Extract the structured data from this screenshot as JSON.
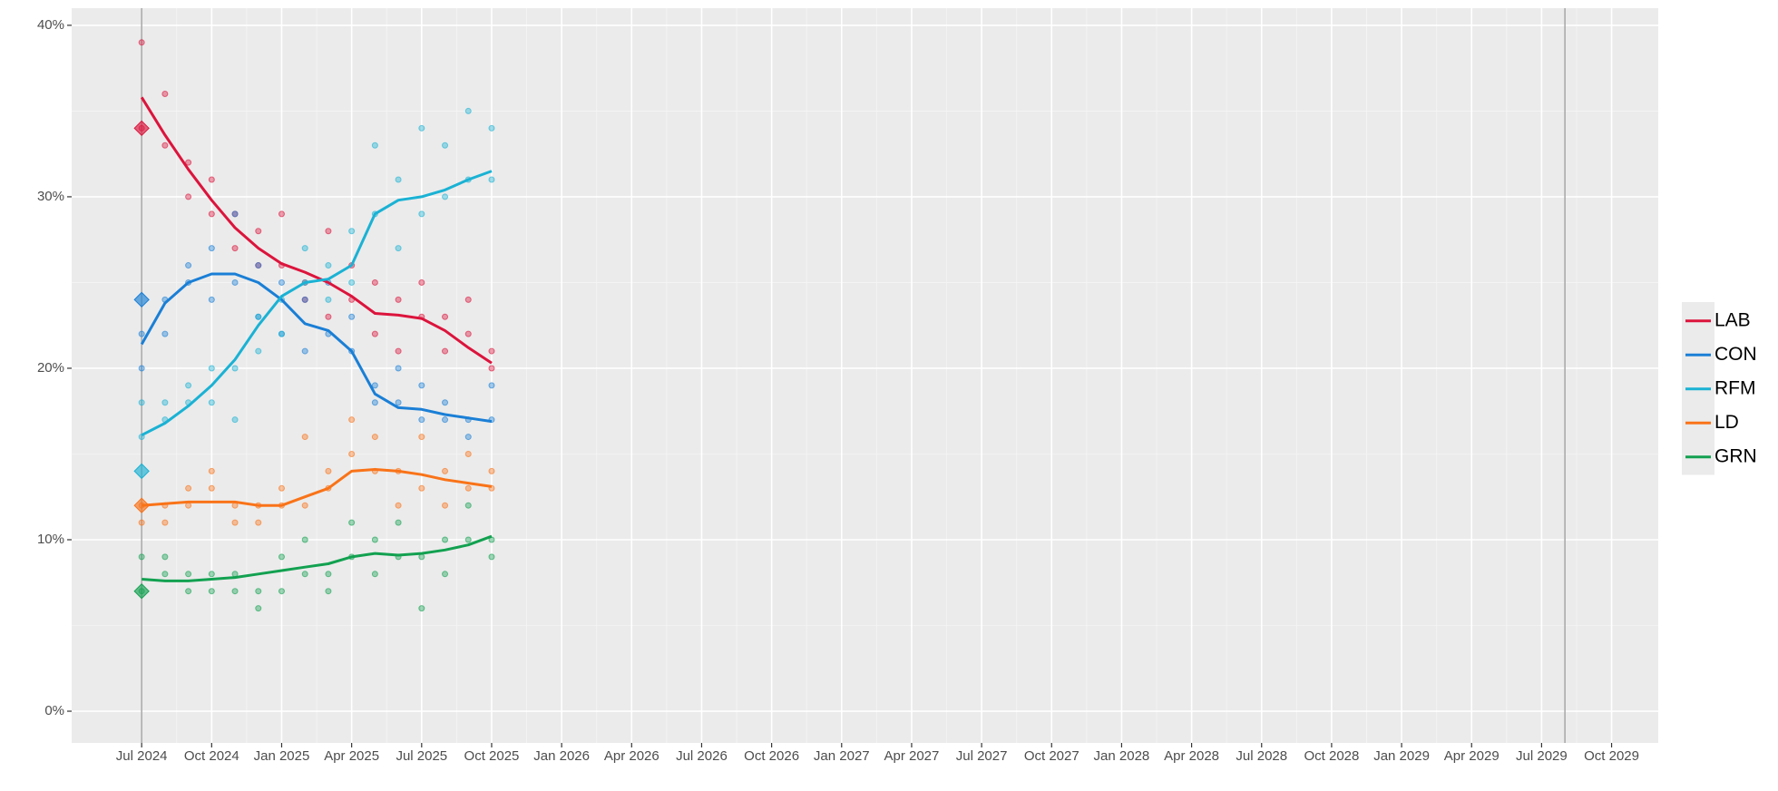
{
  "chart_data": {
    "type": "line",
    "x": [
      "2024-07",
      "2024-08",
      "2024-09",
      "2024-10",
      "2024-11",
      "2024-12",
      "2025-01",
      "2025-02",
      "2025-03",
      "2025-04",
      "2025-05",
      "2025-06",
      "2025-07",
      "2025-08",
      "2025-09",
      "2025-10"
    ],
    "poll_x": [
      "2024-07",
      "2024-07",
      "2024-08",
      "2024-08",
      "2024-09",
      "2024-09",
      "2024-10",
      "2024-10",
      "2024-11",
      "2024-11",
      "2024-12",
      "2024-12",
      "2025-01",
      "2025-01",
      "2025-02",
      "2025-02",
      "2025-03",
      "2025-03",
      "2025-04",
      "2025-04",
      "2025-05",
      "2025-05",
      "2025-06",
      "2025-06",
      "2025-07",
      "2025-07",
      "2025-08",
      "2025-08",
      "2025-09",
      "2025-09",
      "2025-10",
      "2025-10"
    ],
    "election_x": "2024-07",
    "vlines": [
      "2024-07",
      "2029-08"
    ],
    "series": [
      {
        "name": "LAB",
        "color": "#dc143c",
        "values": [
          35.8,
          33.6,
          31.6,
          29.8,
          28.2,
          27,
          26.1,
          25.6,
          25,
          24.2,
          23.2,
          23.1,
          22.9,
          22.2,
          21.2,
          20.3
        ],
        "polls": [
          39,
          34,
          36,
          33,
          30,
          32,
          29,
          31,
          29,
          27,
          28,
          26,
          26,
          29,
          25,
          24,
          28,
          23,
          24,
          26,
          22,
          25,
          24,
          21,
          23,
          25,
          21,
          23,
          22,
          24,
          21,
          20
        ],
        "election": 34
      },
      {
        "name": "CON",
        "color": "#1a7fd6",
        "values": [
          21.4,
          23.8,
          25,
          25.5,
          25.5,
          25,
          24,
          22.6,
          22.2,
          21,
          18.5,
          17.7,
          17.6,
          17.3,
          17.1,
          16.9
        ],
        "polls": [
          20,
          22,
          24,
          22,
          25,
          26,
          24,
          27,
          25,
          29,
          26,
          23,
          25,
          22,
          24,
          21,
          22,
          25,
          21,
          23,
          19,
          18,
          18,
          20,
          17,
          19,
          17,
          18,
          17,
          16,
          17,
          19
        ],
        "election": 24
      },
      {
        "name": "RFM",
        "color": "#1ab2d4",
        "values": [
          16.1,
          16.8,
          17.8,
          19,
          20.5,
          22.5,
          24.2,
          25,
          25.2,
          26,
          29,
          29.8,
          30,
          30.4,
          31,
          31.5
        ],
        "polls": [
          16,
          18,
          17,
          18,
          19,
          18,
          20,
          18,
          20,
          17,
          23,
          21,
          24,
          22,
          25,
          27,
          26,
          24,
          28,
          25,
          29,
          33,
          31,
          27,
          29,
          34,
          30,
          33,
          31,
          35,
          31,
          34
        ],
        "election": 14
      },
      {
        "name": "LD",
        "color": "#f97318",
        "values": [
          12,
          12.1,
          12.2,
          12.2,
          12.2,
          12,
          12,
          12.5,
          13,
          14,
          14.1,
          14,
          13.8,
          13.5,
          13.3,
          13.1
        ],
        "polls": [
          12,
          11,
          12,
          11,
          13,
          12,
          13,
          14,
          12,
          11,
          12,
          11,
          13,
          12,
          12,
          16,
          13,
          14,
          15,
          17,
          14,
          16,
          14,
          12,
          13,
          16,
          14,
          12,
          13,
          15,
          13,
          14
        ],
        "election": 12
      },
      {
        "name": "GRN",
        "color": "#12a150",
        "values": [
          7.7,
          7.6,
          7.6,
          7.7,
          7.8,
          8,
          8.2,
          8.4,
          8.6,
          9,
          9.2,
          9.1,
          9.2,
          9.4,
          9.7,
          10.2
        ],
        "polls": [
          9,
          7,
          8,
          9,
          8,
          7,
          7,
          8,
          8,
          7,
          7,
          6,
          9,
          7,
          8,
          10,
          8,
          7,
          9,
          11,
          10,
          8,
          9,
          11,
          9,
          6,
          10,
          8,
          10,
          12,
          10,
          9
        ],
        "election": 7
      }
    ],
    "xlim": [
      "2024-04",
      "2029-12"
    ],
    "xticks": [
      {
        "value": "2024-07",
        "label": "Jul 2024"
      },
      {
        "value": "2024-10",
        "label": "Oct 2024"
      },
      {
        "value": "2025-01",
        "label": "Jan 2025"
      },
      {
        "value": "2025-04",
        "label": "Apr 2025"
      },
      {
        "value": "2025-07",
        "label": "Jul 2025"
      },
      {
        "value": "2025-10",
        "label": "Oct 2025"
      },
      {
        "value": "2026-01",
        "label": "Jan 2026"
      },
      {
        "value": "2026-04",
        "label": "Apr 2026"
      },
      {
        "value": "2026-07",
        "label": "Jul 2026"
      },
      {
        "value": "2026-10",
        "label": "Oct 2026"
      },
      {
        "value": "2027-01",
        "label": "Jan 2027"
      },
      {
        "value": "2027-04",
        "label": "Apr 2027"
      },
      {
        "value": "2027-07",
        "label": "Jul 2027"
      },
      {
        "value": "2027-10",
        "label": "Oct 2027"
      },
      {
        "value": "2028-01",
        "label": "Jan 2028"
      },
      {
        "value": "2028-04",
        "label": "Apr 2028"
      },
      {
        "value": "2028-07",
        "label": "Jul 2028"
      },
      {
        "value": "2028-10",
        "label": "Oct 2028"
      },
      {
        "value": "2029-01",
        "label": "Jan 2029"
      },
      {
        "value": "2029-04",
        "label": "Apr 2029"
      },
      {
        "value": "2029-07",
        "label": "Jul 2029"
      },
      {
        "value": "2029-10",
        "label": "Oct 2029"
      }
    ],
    "ylim": [
      -1.85,
      41
    ],
    "yticks": [
      {
        "value": 0,
        "label": "0%"
      },
      {
        "value": 10,
        "label": "10%"
      },
      {
        "value": 20,
        "label": "20%"
      },
      {
        "value": 30,
        "label": "30%"
      },
      {
        "value": 40,
        "label": "40%"
      }
    ],
    "grid": true,
    "minor_grid": true,
    "legend": "right"
  }
}
